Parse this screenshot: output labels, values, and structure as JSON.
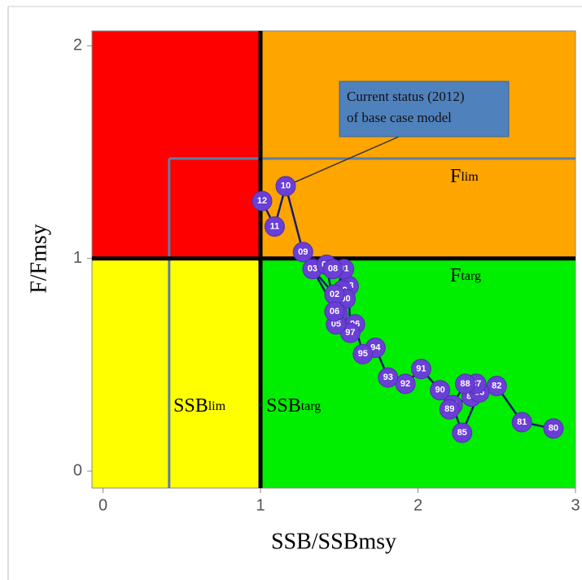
{
  "chart_data": {
    "type": "scatter",
    "x_label": "SSB/SSBmsy",
    "y_label": "F/Fmsy",
    "xlim": [
      -0.07,
      3
    ],
    "ylim": [
      -0.08,
      2.07
    ],
    "xticks": [
      0,
      1,
      2,
      3
    ],
    "yticks": [
      0,
      1,
      2
    ],
    "ssb_targ": 1,
    "f_targ": 1,
    "ssb_lim": 0.42,
    "f_lim": 1.47,
    "region_colors": {
      "overfished_overfishing": "#ff0000",
      "overfishing": "#ffa500",
      "overfished": "#ffff00",
      "healthy": "#00ee00"
    },
    "ref_labels": {
      "ssb_lim": {
        "main": "SSB",
        "sub": "lim"
      },
      "ssb_targ": {
        "main": "SSB",
        "sub": "targ"
      },
      "f_lim": {
        "main": "F",
        "sub": "lim"
      },
      "f_targ": {
        "main": "F",
        "sub": "targ"
      }
    },
    "annotation": [
      "Current status (2012)",
      "of base case model"
    ],
    "color": "#6a3fd6",
    "line_color": "#1a1a6e",
    "point_labels": [
      "80",
      "81",
      "82",
      "83",
      "84",
      "85",
      "86",
      "87",
      "88",
      "89",
      "90",
      "91",
      "92",
      "93",
      "94",
      "95",
      "96",
      "97",
      "98",
      "99",
      "00",
      "01",
      "02",
      "03",
      "04",
      "05",
      "06",
      "07",
      "08",
      "09",
      "10",
      "11",
      "12"
    ],
    "x": [
      2.86,
      2.66,
      2.5,
      2.34,
      2.22,
      2.28,
      2.39,
      2.37,
      2.3,
      2.2,
      2.14,
      2.02,
      1.92,
      1.81,
      1.73,
      1.65,
      1.6,
      1.57,
      1.56,
      1.52,
      1.54,
      1.53,
      1.47,
      1.33,
      1.49,
      1.48,
      1.47,
      1.42,
      1.46,
      1.27,
      1.16,
      1.09,
      1.01
    ],
    "values": [
      0.2,
      0.23,
      0.4,
      0.35,
      0.31,
      0.18,
      0.37,
      0.41,
      0.41,
      0.29,
      0.38,
      0.48,
      0.41,
      0.44,
      0.58,
      0.55,
      0.69,
      0.65,
      0.87,
      0.85,
      0.81,
      0.95,
      0.83,
      0.95,
      0.74,
      0.69,
      0.75,
      0.97,
      0.95,
      1.03,
      1.34,
      1.15,
      1.27
    ]
  }
}
